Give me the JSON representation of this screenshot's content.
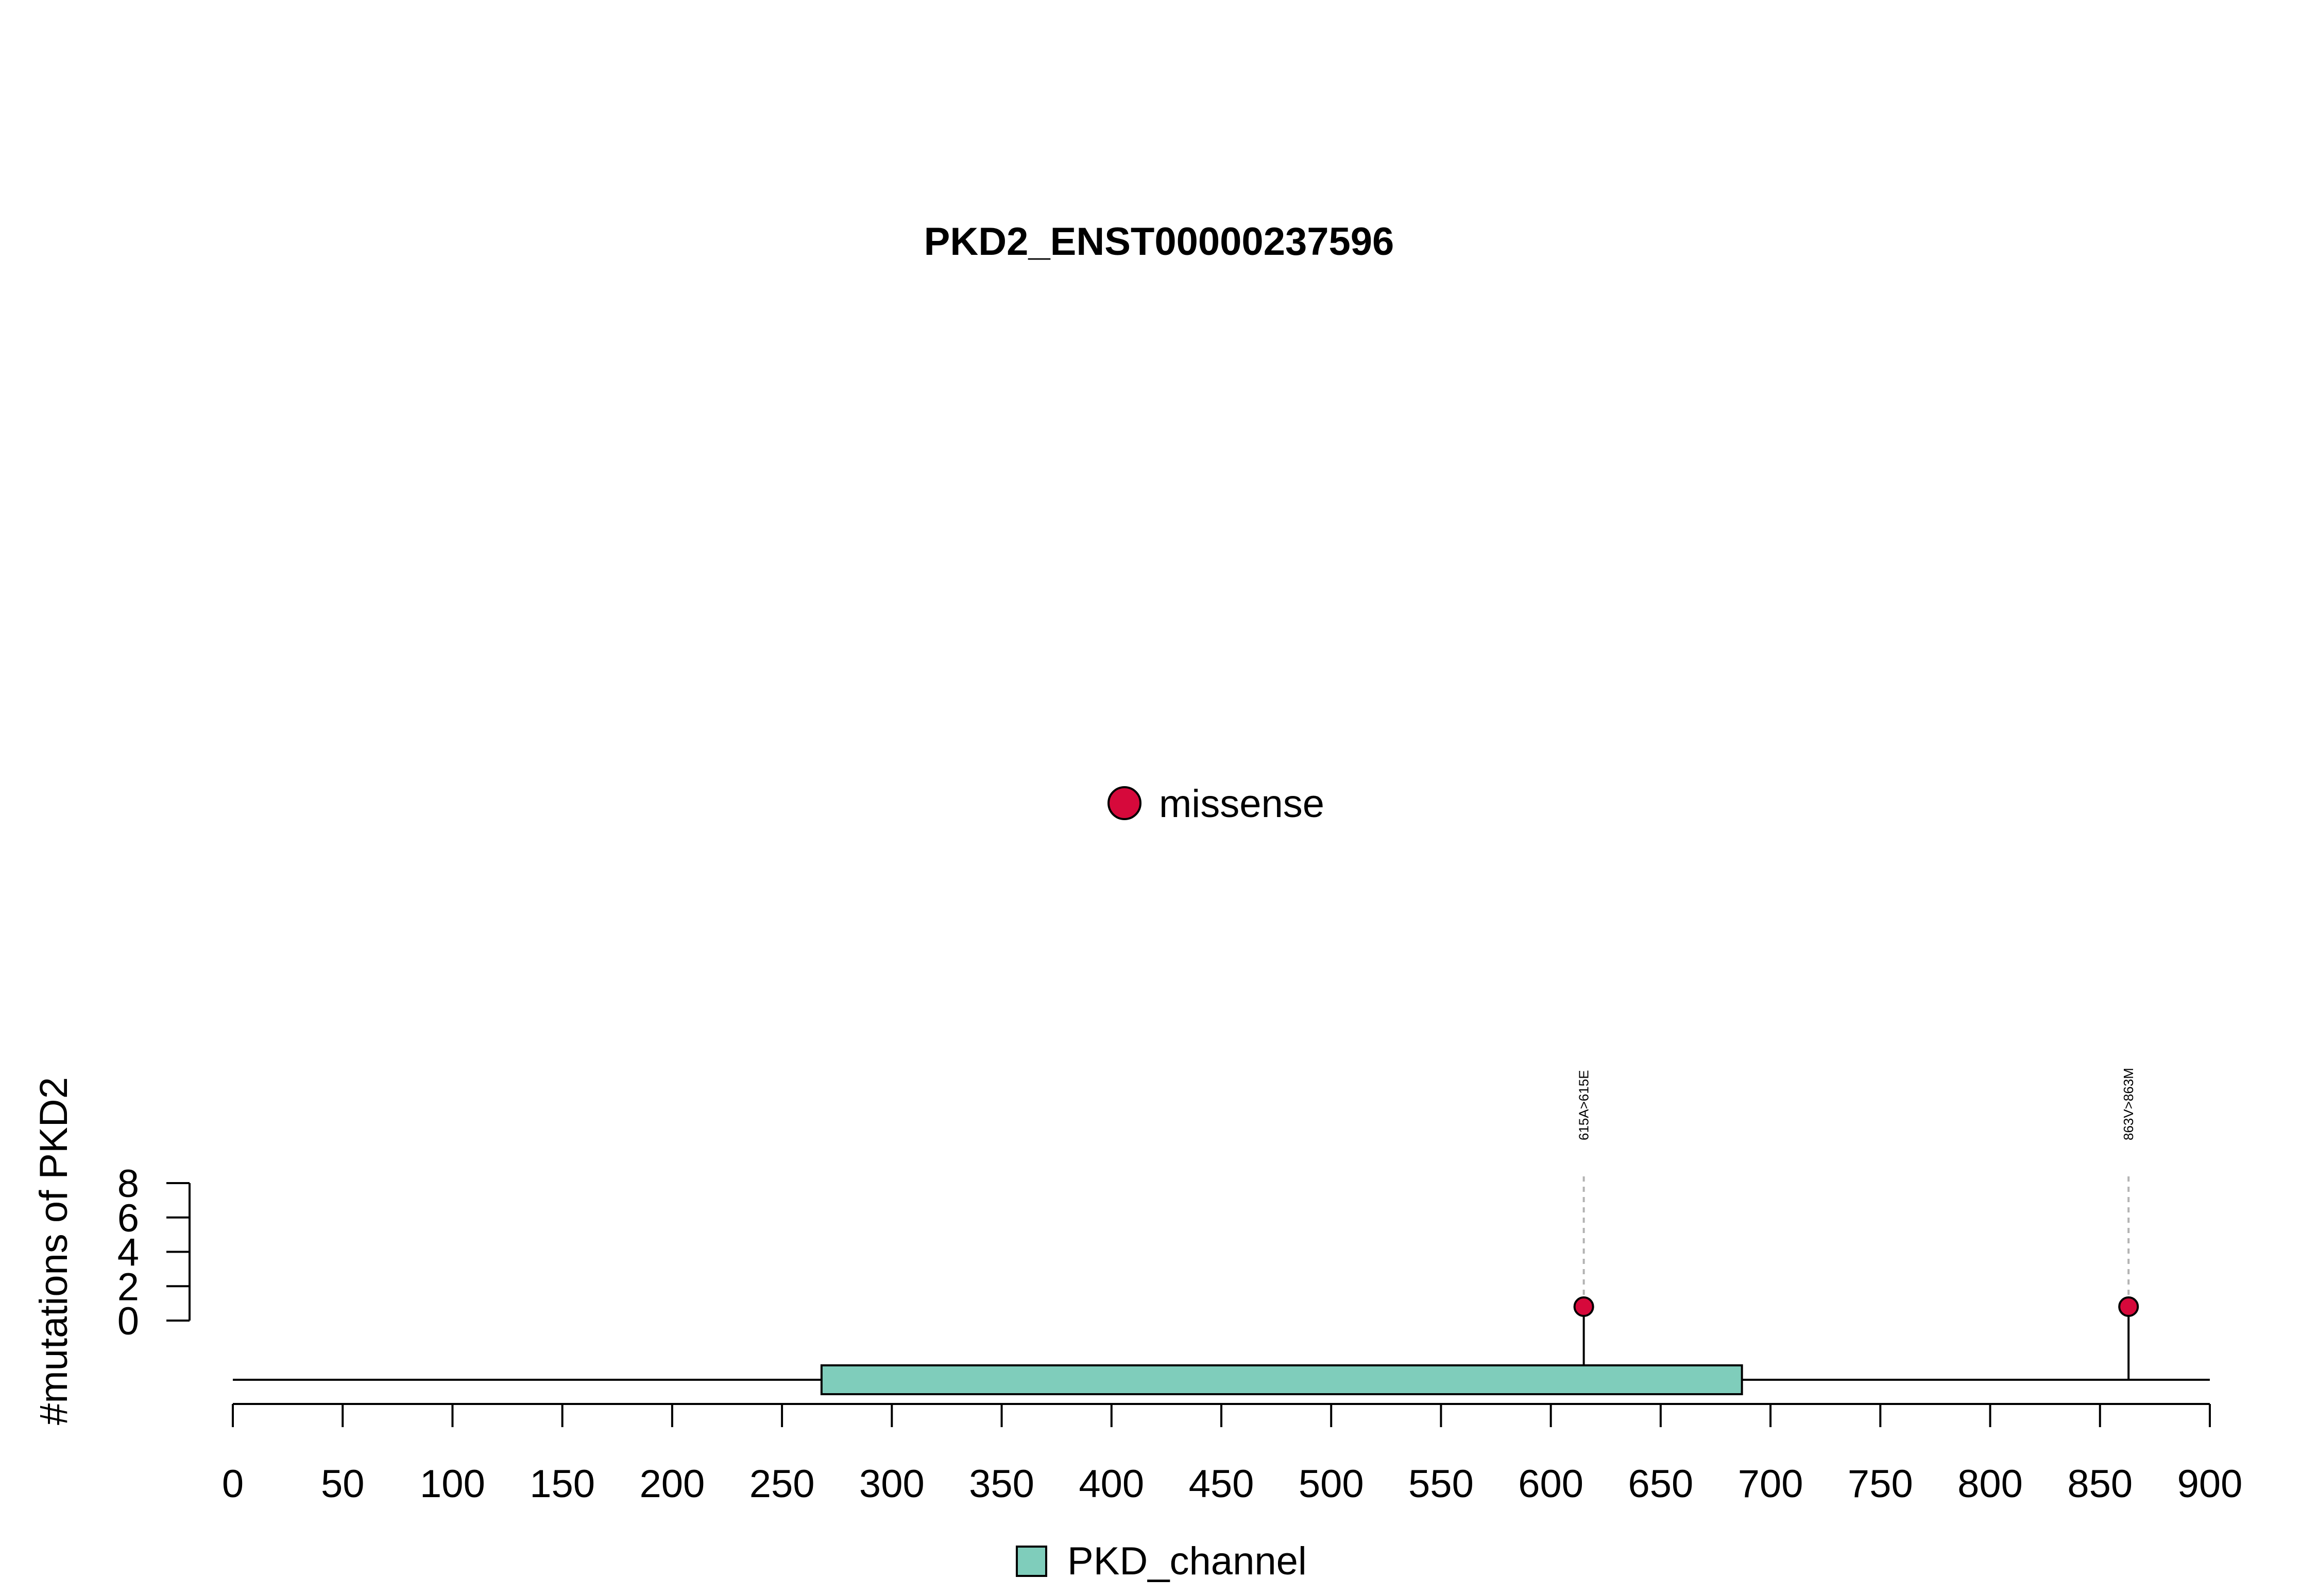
{
  "chart_data": {
    "type": "lollipop",
    "title": "PKD2_ENST00000237596",
    "ylabel": "#mutations of PKD2",
    "xlabel": "",
    "xlim": [
      0,
      900
    ],
    "x_ticks": [
      0,
      50,
      100,
      150,
      200,
      250,
      300,
      350,
      400,
      450,
      500,
      550,
      600,
      650,
      700,
      750,
      800,
      850,
      900
    ],
    "ylim": [
      0,
      8
    ],
    "y_ticks": [
      0,
      2,
      4,
      6,
      8
    ],
    "protein_length": 900,
    "domains": [
      {
        "name": "PKD_channel",
        "start": 268,
        "end": 687,
        "color": "#7fcdbb"
      }
    ],
    "mutations": [
      {
        "position": 615,
        "count": 1,
        "label": "615A>615E",
        "type": "missense"
      },
      {
        "position": 863,
        "count": 1,
        "label": "863V>863M",
        "type": "missense"
      }
    ],
    "mutation_legend": [
      {
        "label": "missense",
        "color": "#d6093b"
      }
    ],
    "domain_legend": [
      {
        "label": "PKD_channel",
        "color": "#7fcdbb"
      }
    ]
  }
}
